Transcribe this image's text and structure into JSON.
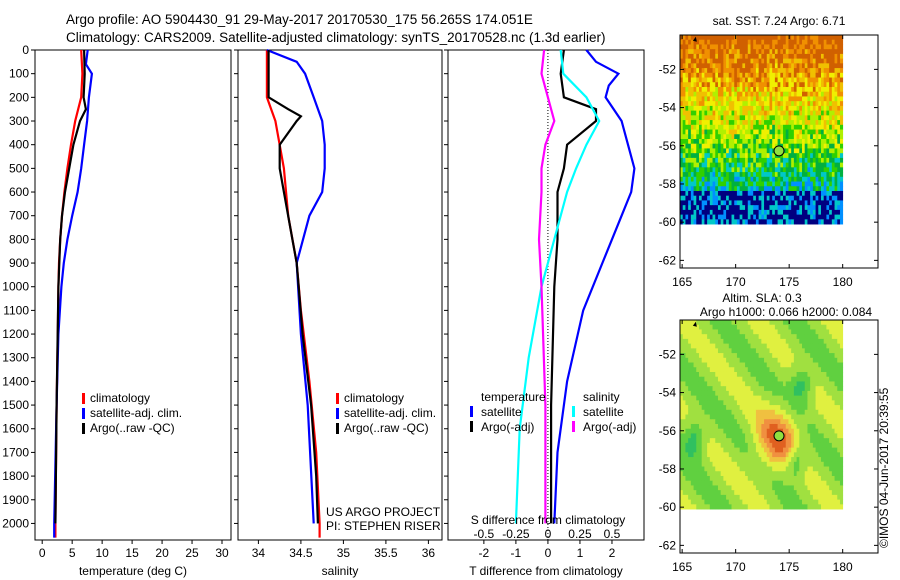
{
  "title_line1": "Argo profile: AO 5904430_91 29-May-2017 20170530_175 56.265S 174.051E",
  "title_line2": "Climatology: CARS2009. Satellite-adjusted climatology: synTS_20170528.nc (1.3d earlier)",
  "credit": "©IMOS 04-Jun-2017 20:39:55",
  "project_line1": "US ARGO PROJECT",
  "project_line2": "PI: STEPHEN RISER",
  "colors": {
    "red": "#ff0000",
    "blue": "#0000ff",
    "black": "#000000",
    "cyan": "#00ffff",
    "magenta": "#ff00ff"
  },
  "chart_data": [
    {
      "type": "line",
      "id": "temperature",
      "xlabel": "temperature (deg C)",
      "ylabel": "depth",
      "xlim": [
        -1.2,
        31.5
      ],
      "ylim": [
        2070,
        0
      ],
      "xticks": [
        0,
        5,
        10,
        15,
        20,
        25,
        30
      ],
      "yticks": [
        0,
        100,
        200,
        300,
        400,
        500,
        600,
        700,
        800,
        900,
        1000,
        1100,
        1200,
        1300,
        1400,
        1500,
        1600,
        1700,
        1800,
        1900,
        2000
      ],
      "legend": [
        "climatology",
        "satellite-adj. clim.",
        "Argo(..raw -QC)"
      ],
      "legend_placement": "lower-center",
      "series": [
        {
          "name": "climatology",
          "color": "red",
          "depth": [
            0,
            100,
            200,
            300,
            400,
            500,
            600,
            700,
            800,
            900,
            1000,
            1200,
            1500,
            2000,
            2060
          ],
          "values": [
            6.5,
            6.7,
            6.5,
            5.5,
            4.8,
            4.2,
            3.7,
            3.3,
            3.0,
            2.8,
            2.7,
            2.6,
            2.4,
            2.2,
            2.2
          ]
        },
        {
          "name": "satellite-adj. clim.",
          "color": "blue",
          "depth": [
            0,
            60,
            100,
            200,
            300,
            400,
            500,
            600,
            700,
            800,
            900,
            1000,
            1200,
            1500,
            2000,
            2060
          ],
          "values": [
            7.6,
            7.3,
            8.3,
            7.8,
            7.5,
            7.0,
            6.5,
            5.9,
            5.0,
            4.2,
            3.6,
            3.2,
            2.7,
            2.4,
            2.0,
            2.0
          ]
        },
        {
          "name": "Argo(..raw -QC)",
          "color": "black",
          "depth": [
            0,
            100,
            200,
            250,
            300,
            400,
            500,
            600,
            700,
            800,
            1000,
            1500,
            2000
          ],
          "values": [
            7.0,
            7.1,
            6.9,
            7.3,
            6.3,
            5.2,
            4.5,
            3.8,
            3.3,
            3.0,
            2.7,
            2.4,
            2.2
          ]
        }
      ]
    },
    {
      "type": "line",
      "id": "salinity",
      "xlabel": "salinity",
      "ylim": [
        2070,
        0
      ],
      "xlim": [
        33.76,
        36.16
      ],
      "xticks": [
        34,
        34.5,
        35,
        35.5,
        36
      ],
      "legend": [
        "climatology",
        "satellite-adj. clim.",
        "Argo(..raw -QC)"
      ],
      "legend_placement": "lower-center",
      "series": [
        {
          "name": "climatology",
          "color": "red",
          "depth": [
            0,
            200,
            300,
            500,
            700,
            900,
            1100,
            1400,
            1700,
            2000,
            2060
          ],
          "values": [
            34.1,
            34.1,
            34.2,
            34.3,
            34.35,
            34.45,
            34.5,
            34.6,
            34.68,
            34.72,
            34.72
          ]
        },
        {
          "name": "satellite-adj. clim.",
          "color": "blue",
          "depth": [
            0,
            50,
            100,
            200,
            300,
            400,
            500,
            600,
            700,
            900,
            1200,
            1500,
            2000
          ],
          "values": [
            34.1,
            34.45,
            34.55,
            34.65,
            34.75,
            34.78,
            34.78,
            34.75,
            34.6,
            34.45,
            34.5,
            34.58,
            34.65
          ]
        },
        {
          "name": "Argo(..raw -QC)",
          "color": "black",
          "depth": [
            0,
            200,
            250,
            280,
            300,
            400,
            500,
            600,
            800,
            900,
            1200,
            1500,
            1800,
            2000
          ],
          "values": [
            34.12,
            34.12,
            34.35,
            34.5,
            34.45,
            34.25,
            34.25,
            34.3,
            34.4,
            34.45,
            34.52,
            34.62,
            34.68,
            34.7
          ]
        }
      ]
    },
    {
      "type": "line",
      "id": "difference",
      "xlabel": "T difference from climatology",
      "xlabel2": "S difference from climatology",
      "xlim": [
        -3.12,
        3.0
      ],
      "ylim": [
        2070,
        0
      ],
      "xticks": [
        -2,
        -1,
        0,
        1,
        2
      ],
      "xticks2": [
        -0.5,
        -0.25,
        0,
        0.25,
        0.5
      ],
      "x2_labels": [
        "-0.5",
        "-0.25",
        "0",
        "0.25",
        "0.5"
      ],
      "legend_headers": [
        "temperature",
        "salinity"
      ],
      "legend": [
        "satellite",
        "Argo(-adj)",
        "satellite",
        "Argo(-adj)"
      ],
      "series": [
        {
          "name": "T satellite",
          "color": "blue",
          "axis": "T",
          "depth": [
            0,
            50,
            100,
            150,
            200,
            300,
            400,
            500,
            600,
            700,
            900,
            1100,
            1400,
            1700,
            2000
          ],
          "values": [
            1.2,
            1.5,
            2.2,
            1.9,
            1.8,
            2.3,
            2.5,
            2.7,
            2.6,
            2.3,
            1.7,
            1.1,
            0.6,
            0.3,
            0.2
          ]
        },
        {
          "name": "T Argo(-adj)",
          "color": "black",
          "axis": "T",
          "depth": [
            0,
            100,
            200,
            250,
            300,
            400,
            500,
            600,
            800,
            1000,
            1500,
            2000
          ],
          "values": [
            0.5,
            0.4,
            0.5,
            1.5,
            1.5,
            0.6,
            0.5,
            0.3,
            0.3,
            0.2,
            0.1,
            0.1
          ]
        },
        {
          "name": "S satellite",
          "color": "cyan",
          "axis": "S",
          "depth": [
            0,
            100,
            200,
            300,
            400,
            500,
            600,
            800,
            1000,
            1300,
            1600,
            2000
          ],
          "values": [
            0.1,
            0.12,
            0.3,
            0.4,
            0.3,
            0.22,
            0.15,
            0.05,
            -0.05,
            -0.15,
            -0.22,
            -0.25
          ]
        },
        {
          "name": "S Argo(-adj)",
          "color": "magenta",
          "axis": "S",
          "depth": [
            0,
            100,
            200,
            300,
            400,
            500,
            600,
            800,
            1000,
            1500,
            2000
          ],
          "values": [
            -0.03,
            -0.05,
            0.0,
            0.05,
            -0.02,
            -0.05,
            -0.05,
            -0.07,
            -0.05,
            -0.02,
            -0.02
          ]
        }
      ]
    },
    {
      "type": "heatmap",
      "id": "sst-map",
      "title": "sat. SST: 7.24 Argo: 6.71",
      "xlim": [
        164.8,
        183.3
      ],
      "ylim": [
        -62.4,
        -50.2
      ],
      "xticks": [
        165,
        170,
        175,
        180
      ],
      "yticks": [
        -52,
        -54,
        -56,
        -58,
        -60,
        -62
      ],
      "argo_position": [
        174.051,
        -56.265
      ]
    },
    {
      "type": "heatmap",
      "id": "sla-map",
      "title_line1": "Altim. SLA: 0.3",
      "title_line2": "Argo h1000: 0.066 h2000: 0.084",
      "xlim": [
        164.8,
        183.3
      ],
      "ylim": [
        -62.4,
        -50.2
      ],
      "xticks": [
        165,
        170,
        175,
        180
      ],
      "yticks": [
        -52,
        -54,
        -56,
        -58,
        -60,
        -62
      ],
      "argo_position": [
        174.051,
        -56.265
      ]
    }
  ]
}
